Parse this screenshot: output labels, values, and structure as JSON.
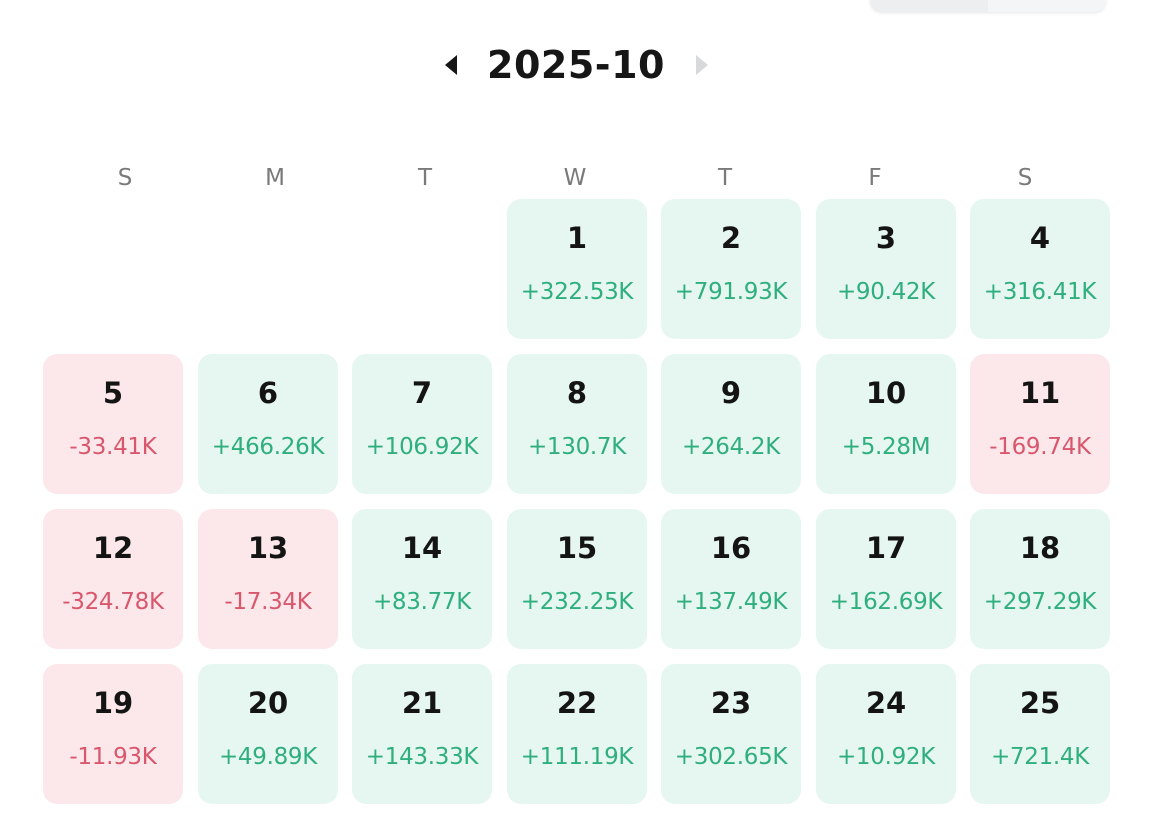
{
  "header": {
    "month": "2025-10",
    "prev_icon": "caret-left-icon",
    "next_icon": "caret-right-icon"
  },
  "weekdays": [
    "S",
    "M",
    "T",
    "W",
    "T",
    "F",
    "S"
  ],
  "colors": {
    "gain_bg": "#e6f7f1",
    "gain_text": "#2fae7e",
    "loss_bg": "#fce8ea",
    "loss_text": "#d9576d"
  },
  "first_weekday_index": 3,
  "days": [
    {
      "day": "1",
      "value": "+322.53K",
      "status": "gain"
    },
    {
      "day": "2",
      "value": "+791.93K",
      "status": "gain"
    },
    {
      "day": "3",
      "value": "+90.42K",
      "status": "gain"
    },
    {
      "day": "4",
      "value": "+316.41K",
      "status": "gain"
    },
    {
      "day": "5",
      "value": "-33.41K",
      "status": "loss"
    },
    {
      "day": "6",
      "value": "+466.26K",
      "status": "gain"
    },
    {
      "day": "7",
      "value": "+106.92K",
      "status": "gain"
    },
    {
      "day": "8",
      "value": "+130.7K",
      "status": "gain"
    },
    {
      "day": "9",
      "value": "+264.2K",
      "status": "gain"
    },
    {
      "day": "10",
      "value": "+5.28M",
      "status": "gain"
    },
    {
      "day": "11",
      "value": "-169.74K",
      "status": "loss"
    },
    {
      "day": "12",
      "value": "-324.78K",
      "status": "loss"
    },
    {
      "day": "13",
      "value": "-17.34K",
      "status": "loss"
    },
    {
      "day": "14",
      "value": "+83.77K",
      "status": "gain"
    },
    {
      "day": "15",
      "value": "+232.25K",
      "status": "gain"
    },
    {
      "day": "16",
      "value": "+137.49K",
      "status": "gain"
    },
    {
      "day": "17",
      "value": "+162.69K",
      "status": "gain"
    },
    {
      "day": "18",
      "value": "+297.29K",
      "status": "gain"
    },
    {
      "day": "19",
      "value": "-11.93K",
      "status": "loss"
    },
    {
      "day": "20",
      "value": "+49.89K",
      "status": "gain"
    },
    {
      "day": "21",
      "value": "+143.33K",
      "status": "gain"
    },
    {
      "day": "22",
      "value": "+111.19K",
      "status": "gain"
    },
    {
      "day": "23",
      "value": "+302.65K",
      "status": "gain"
    },
    {
      "day": "24",
      "value": "+10.92K",
      "status": "gain"
    },
    {
      "day": "25",
      "value": "+721.4K",
      "status": "gain"
    }
  ]
}
